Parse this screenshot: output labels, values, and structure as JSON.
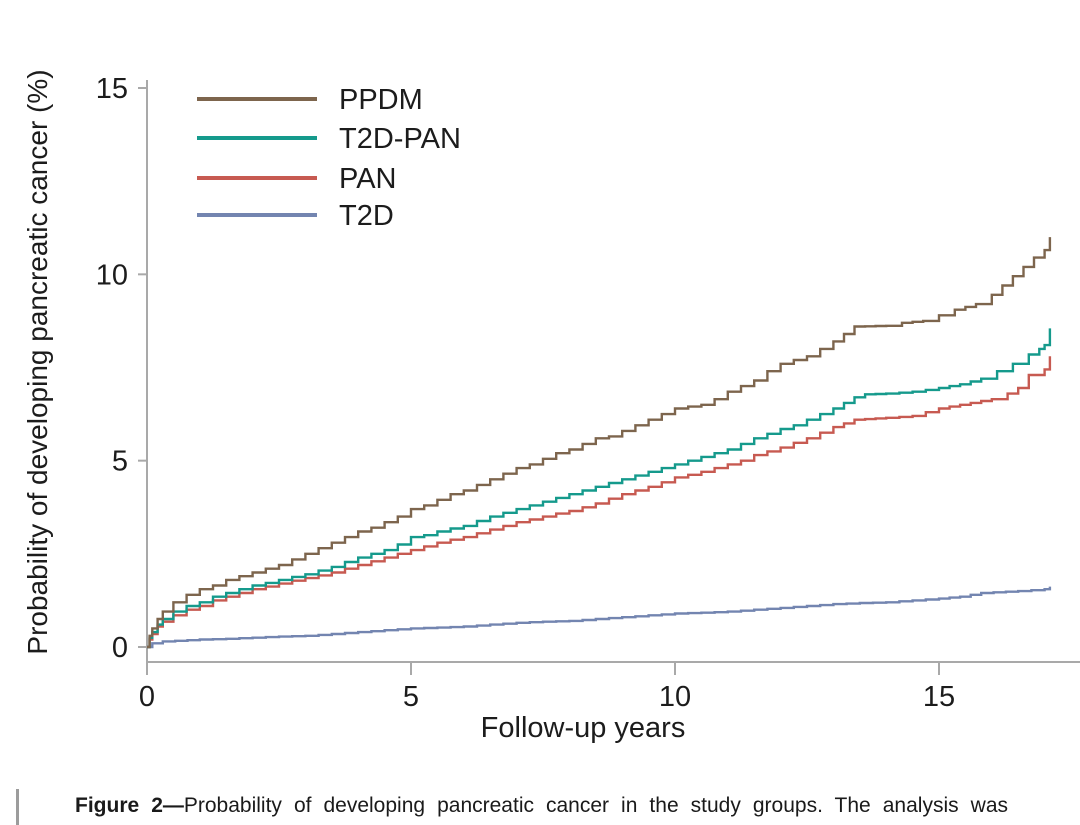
{
  "figure": {
    "y_axis_label": "Probability of developing pancreatic cancer (%)",
    "x_axis_label": "Follow-up years",
    "y_tick_labels": [
      "0",
      "5",
      "10",
      "15"
    ],
    "x_tick_labels": [
      "0",
      "5",
      "10",
      "15"
    ]
  },
  "legend": [
    {
      "label": "PPDM",
      "color": "#7d654d"
    },
    {
      "label": "T2D-PAN",
      "color": "#159a8c"
    },
    {
      "label": "PAN",
      "color": "#c75a51"
    },
    {
      "label": "T2D",
      "color": "#7385b0"
    }
  ],
  "caption": {
    "label": "Figure 2—",
    "text": "Probability of developing pancreatic cancer in the study groups. The analysis was"
  },
  "colors": {
    "axis": "#a9a9a9",
    "text": "#1c1c1c",
    "caption_bar": "#9c9c9c"
  },
  "chart_data": {
    "type": "line",
    "subtype": "kaplan-meier-step",
    "title": "",
    "xlabel": "Follow-up years",
    "ylabel": "Probability of developing pancreatic cancer (%)",
    "xlim": [
      0,
      17.7
    ],
    "ylim": [
      0,
      15
    ],
    "x_ticks": [
      0,
      5,
      10,
      15
    ],
    "y_ticks": [
      0,
      5,
      10,
      15
    ],
    "grid": false,
    "legend_position": "inside top-left",
    "series": [
      {
        "name": "PPDM",
        "color": "#7d654d",
        "points": [
          [
            0,
            0
          ],
          [
            0.05,
            0.3
          ],
          [
            0.1,
            0.5
          ],
          [
            0.2,
            0.75
          ],
          [
            0.3,
            0.95
          ],
          [
            0.5,
            1.2
          ],
          [
            0.75,
            1.4
          ],
          [
            1,
            1.55
          ],
          [
            1.25,
            1.65
          ],
          [
            1.5,
            1.8
          ],
          [
            1.75,
            1.9
          ],
          [
            2,
            2.0
          ],
          [
            2.25,
            2.1
          ],
          [
            2.5,
            2.2
          ],
          [
            2.75,
            2.35
          ],
          [
            3,
            2.5
          ],
          [
            3.25,
            2.65
          ],
          [
            3.5,
            2.8
          ],
          [
            3.75,
            2.95
          ],
          [
            4,
            3.1
          ],
          [
            4.25,
            3.2
          ],
          [
            4.5,
            3.35
          ],
          [
            4.75,
            3.5
          ],
          [
            5,
            3.7
          ],
          [
            5.25,
            3.8
          ],
          [
            5.5,
            3.95
          ],
          [
            5.75,
            4.1
          ],
          [
            6,
            4.2
          ],
          [
            6.25,
            4.35
          ],
          [
            6.5,
            4.5
          ],
          [
            6.75,
            4.65
          ],
          [
            7,
            4.8
          ],
          [
            7.25,
            4.9
          ],
          [
            7.5,
            5.05
          ],
          [
            7.75,
            5.2
          ],
          [
            8,
            5.3
          ],
          [
            8.25,
            5.45
          ],
          [
            8.5,
            5.6
          ],
          [
            8.75,
            5.65
          ],
          [
            9,
            5.8
          ],
          [
            9.25,
            5.95
          ],
          [
            9.5,
            6.1
          ],
          [
            9.75,
            6.25
          ],
          [
            10,
            6.4
          ],
          [
            10.25,
            6.45
          ],
          [
            10.5,
            6.5
          ],
          [
            10.75,
            6.65
          ],
          [
            11,
            6.85
          ],
          [
            11.25,
            7.0
          ],
          [
            11.5,
            7.15
          ],
          [
            11.75,
            7.4
          ],
          [
            12,
            7.6
          ],
          [
            12.25,
            7.7
          ],
          [
            12.5,
            7.8
          ],
          [
            12.75,
            8.0
          ],
          [
            13,
            8.2
          ],
          [
            13.2,
            8.4
          ],
          [
            13.4,
            8.6
          ],
          [
            14,
            8.62
          ],
          [
            14.3,
            8.7
          ],
          [
            14.7,
            8.75
          ],
          [
            15,
            8.9
          ],
          [
            15.3,
            9.05
          ],
          [
            15.7,
            9.2
          ],
          [
            16,
            9.45
          ],
          [
            16.2,
            9.7
          ],
          [
            16.4,
            9.95
          ],
          [
            16.6,
            10.2
          ],
          [
            16.8,
            10.45
          ],
          [
            17,
            10.65
          ],
          [
            17.1,
            11.0
          ]
        ]
      },
      {
        "name": "T2D-PAN",
        "color": "#159a8c",
        "points": [
          [
            0,
            0
          ],
          [
            0.05,
            0.25
          ],
          [
            0.1,
            0.4
          ],
          [
            0.2,
            0.6
          ],
          [
            0.3,
            0.75
          ],
          [
            0.5,
            0.95
          ],
          [
            0.75,
            1.1
          ],
          [
            1,
            1.2
          ],
          [
            1.25,
            1.35
          ],
          [
            1.5,
            1.45
          ],
          [
            1.75,
            1.55
          ],
          [
            2,
            1.65
          ],
          [
            2.25,
            1.72
          ],
          [
            2.5,
            1.8
          ],
          [
            2.75,
            1.88
          ],
          [
            3,
            1.95
          ],
          [
            3.25,
            2.05
          ],
          [
            3.5,
            2.15
          ],
          [
            3.75,
            2.28
          ],
          [
            4,
            2.4
          ],
          [
            4.25,
            2.5
          ],
          [
            4.5,
            2.6
          ],
          [
            4.75,
            2.75
          ],
          [
            5,
            2.95
          ],
          [
            5.25,
            3.0
          ],
          [
            5.5,
            3.1
          ],
          [
            5.75,
            3.18
          ],
          [
            6,
            3.25
          ],
          [
            6.25,
            3.38
          ],
          [
            6.5,
            3.5
          ],
          [
            6.75,
            3.6
          ],
          [
            7,
            3.7
          ],
          [
            7.25,
            3.8
          ],
          [
            7.5,
            3.9
          ],
          [
            7.75,
            4.0
          ],
          [
            8,
            4.1
          ],
          [
            8.25,
            4.2
          ],
          [
            8.5,
            4.3
          ],
          [
            8.75,
            4.4
          ],
          [
            9,
            4.5
          ],
          [
            9.25,
            4.6
          ],
          [
            9.5,
            4.7
          ],
          [
            9.75,
            4.8
          ],
          [
            10,
            4.9
          ],
          [
            10.25,
            5.0
          ],
          [
            10.5,
            5.1
          ],
          [
            10.75,
            5.2
          ],
          [
            11,
            5.3
          ],
          [
            11.25,
            5.45
          ],
          [
            11.5,
            5.6
          ],
          [
            11.75,
            5.72
          ],
          [
            12,
            5.85
          ],
          [
            12.25,
            5.95
          ],
          [
            12.5,
            6.1
          ],
          [
            12.75,
            6.25
          ],
          [
            13,
            6.4
          ],
          [
            13.2,
            6.55
          ],
          [
            13.4,
            6.7
          ],
          [
            13.6,
            6.78
          ],
          [
            14,
            6.8
          ],
          [
            14.5,
            6.85
          ],
          [
            15,
            6.95
          ],
          [
            15.4,
            7.05
          ],
          [
            15.8,
            7.2
          ],
          [
            16.1,
            7.4
          ],
          [
            16.4,
            7.6
          ],
          [
            16.7,
            7.85
          ],
          [
            16.9,
            8.0
          ],
          [
            17,
            8.1
          ],
          [
            17.1,
            8.55
          ]
        ]
      },
      {
        "name": "PAN",
        "color": "#c75a51",
        "points": [
          [
            0,
            0
          ],
          [
            0.05,
            0.2
          ],
          [
            0.1,
            0.35
          ],
          [
            0.2,
            0.55
          ],
          [
            0.3,
            0.68
          ],
          [
            0.5,
            0.85
          ],
          [
            0.75,
            1.0
          ],
          [
            1,
            1.1
          ],
          [
            1.25,
            1.25
          ],
          [
            1.5,
            1.35
          ],
          [
            1.75,
            1.45
          ],
          [
            2,
            1.55
          ],
          [
            2.25,
            1.62
          ],
          [
            2.5,
            1.7
          ],
          [
            2.75,
            1.78
          ],
          [
            3,
            1.85
          ],
          [
            3.25,
            1.92
          ],
          [
            3.5,
            2.0
          ],
          [
            3.75,
            2.1
          ],
          [
            4,
            2.2
          ],
          [
            4.25,
            2.3
          ],
          [
            4.5,
            2.4
          ],
          [
            4.75,
            2.5
          ],
          [
            5,
            2.6
          ],
          [
            5.25,
            2.7
          ],
          [
            5.5,
            2.8
          ],
          [
            5.75,
            2.88
          ],
          [
            6,
            2.95
          ],
          [
            6.25,
            3.05
          ],
          [
            6.5,
            3.15
          ],
          [
            6.75,
            3.25
          ],
          [
            7,
            3.35
          ],
          [
            7.25,
            3.42
          ],
          [
            7.5,
            3.5
          ],
          [
            7.75,
            3.58
          ],
          [
            8,
            3.65
          ],
          [
            8.25,
            3.75
          ],
          [
            8.5,
            3.85
          ],
          [
            8.75,
            3.98
          ],
          [
            9,
            4.1
          ],
          [
            9.25,
            4.2
          ],
          [
            9.5,
            4.3
          ],
          [
            9.75,
            4.42
          ],
          [
            10,
            4.55
          ],
          [
            10.25,
            4.62
          ],
          [
            10.5,
            4.7
          ],
          [
            10.75,
            4.8
          ],
          [
            11,
            4.9
          ],
          [
            11.25,
            5.0
          ],
          [
            11.5,
            5.15
          ],
          [
            11.75,
            5.25
          ],
          [
            12,
            5.35
          ],
          [
            12.25,
            5.48
          ],
          [
            12.5,
            5.6
          ],
          [
            12.75,
            5.75
          ],
          [
            13,
            5.9
          ],
          [
            13.2,
            6.0
          ],
          [
            13.4,
            6.1
          ],
          [
            14,
            6.15
          ],
          [
            14.5,
            6.2
          ],
          [
            15,
            6.4
          ],
          [
            15.6,
            6.55
          ],
          [
            16,
            6.65
          ],
          [
            16.3,
            6.8
          ],
          [
            16.5,
            6.95
          ],
          [
            16.7,
            7.3
          ],
          [
            17,
            7.45
          ],
          [
            17.1,
            7.8
          ]
        ]
      },
      {
        "name": "T2D",
        "color": "#7385b0",
        "points": [
          [
            0,
            0
          ],
          [
            0.1,
            0.1
          ],
          [
            0.3,
            0.15
          ],
          [
            1,
            0.2
          ],
          [
            1.5,
            0.22
          ],
          [
            2,
            0.25
          ],
          [
            2.5,
            0.28
          ],
          [
            3,
            0.3
          ],
          [
            3.5,
            0.35
          ],
          [
            4,
            0.4
          ],
          [
            4.5,
            0.45
          ],
          [
            5,
            0.5
          ],
          [
            5.5,
            0.52
          ],
          [
            6,
            0.55
          ],
          [
            6.5,
            0.6
          ],
          [
            7,
            0.65
          ],
          [
            7.5,
            0.68
          ],
          [
            8,
            0.7
          ],
          [
            8.5,
            0.75
          ],
          [
            9,
            0.8
          ],
          [
            9.5,
            0.85
          ],
          [
            10,
            0.9
          ],
          [
            10.5,
            0.92
          ],
          [
            11,
            0.95
          ],
          [
            11.5,
            1.0
          ],
          [
            12,
            1.05
          ],
          [
            12.5,
            1.1
          ],
          [
            13,
            1.15
          ],
          [
            13.5,
            1.18
          ],
          [
            14,
            1.2
          ],
          [
            14.5,
            1.25
          ],
          [
            15,
            1.3
          ],
          [
            15.4,
            1.35
          ],
          [
            15.8,
            1.45
          ],
          [
            16.5,
            1.5
          ],
          [
            17,
            1.55
          ],
          [
            17.1,
            1.62
          ]
        ]
      }
    ]
  }
}
